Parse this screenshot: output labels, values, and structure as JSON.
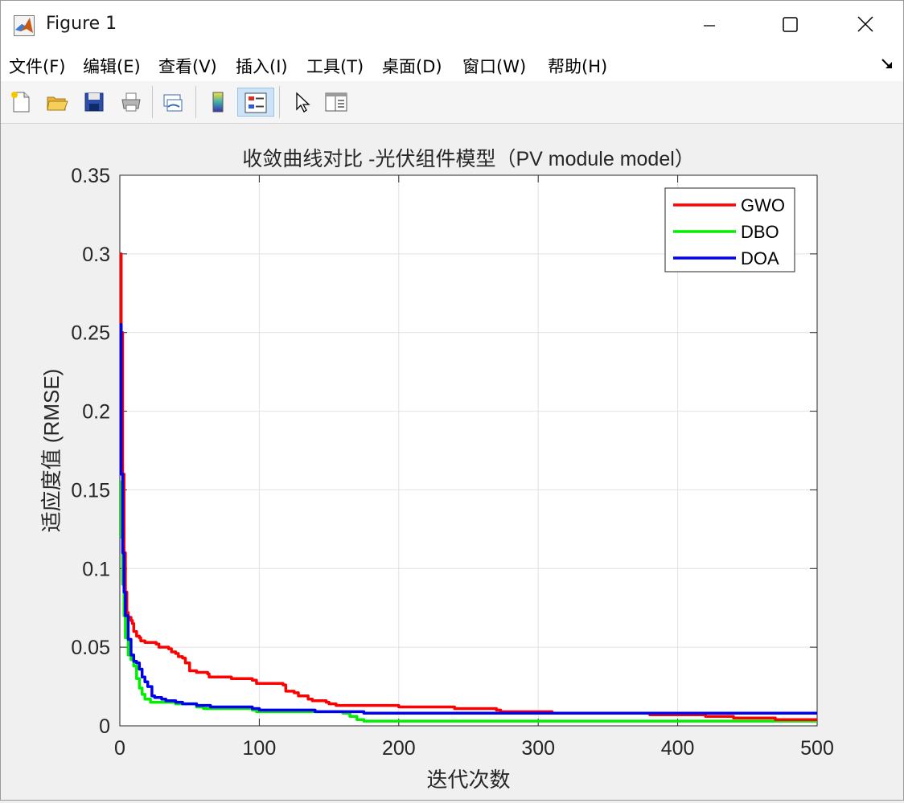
{
  "window": {
    "title": "Figure 1"
  },
  "menu": [
    {
      "label": "文件(F)"
    },
    {
      "label": "编辑(E)"
    },
    {
      "label": "查看(V)"
    },
    {
      "label": "插入(I)"
    },
    {
      "label": "工具(T)"
    },
    {
      "label": "桌面(D)"
    },
    {
      "label": "窗口(W)"
    },
    {
      "label": "帮助(H)"
    }
  ],
  "toolbar": [
    {
      "icon": "new-figure-icon"
    },
    {
      "icon": "open-file-icon"
    },
    {
      "icon": "save-icon"
    },
    {
      "icon": "print-icon"
    },
    {
      "icon": "link-plot-icon"
    },
    {
      "icon": "colorbar-icon"
    },
    {
      "icon": "legend-icon",
      "active": true
    },
    {
      "icon": "edit-plot-pointer-icon"
    },
    {
      "icon": "property-inspector-icon"
    }
  ],
  "chart_data": {
    "type": "line",
    "title": "收敛曲线对比 -光伏组件模型（PV module model）",
    "xlabel": "迭代次数",
    "ylabel": "适应度值 (RMSE)",
    "xlim": [
      0,
      500
    ],
    "ylim": [
      0,
      0.35
    ],
    "xticks": [
      0,
      100,
      200,
      300,
      400,
      500
    ],
    "xtick_labels": [
      "0",
      "100",
      "200",
      "300",
      "400",
      "500"
    ],
    "yticks": [
      0,
      0.05,
      0.1,
      0.15,
      0.2,
      0.25,
      0.3,
      0.35
    ],
    "ytick_labels": [
      "0",
      "0.05",
      "0.1",
      "0.15",
      "0.2",
      "0.25",
      "0.3",
      "0.35"
    ],
    "grid": true,
    "legend_position": "top-right",
    "series": [
      {
        "name": "GWO",
        "color": "#ff0000",
        "points": [
          [
            0,
            0.3
          ],
          [
            1,
            0.25
          ],
          [
            2,
            0.16
          ],
          [
            3,
            0.11
          ],
          [
            4,
            0.085
          ],
          [
            5,
            0.072
          ],
          [
            6,
            0.069
          ],
          [
            8,
            0.067
          ],
          [
            9,
            0.065
          ],
          [
            10,
            0.06
          ],
          [
            12,
            0.057
          ],
          [
            14,
            0.056
          ],
          [
            15,
            0.054
          ],
          [
            18,
            0.053
          ],
          [
            26,
            0.052
          ],
          [
            28,
            0.05
          ],
          [
            35,
            0.049
          ],
          [
            37,
            0.047
          ],
          [
            40,
            0.046
          ],
          [
            42,
            0.044
          ],
          [
            45,
            0.043
          ],
          [
            47,
            0.04
          ],
          [
            50,
            0.035
          ],
          [
            55,
            0.034
          ],
          [
            63,
            0.033
          ],
          [
            64,
            0.031
          ],
          [
            80,
            0.03
          ],
          [
            95,
            0.029
          ],
          [
            98,
            0.027
          ],
          [
            117,
            0.026
          ],
          [
            119,
            0.022
          ],
          [
            125,
            0.021
          ],
          [
            128,
            0.019
          ],
          [
            135,
            0.017
          ],
          [
            138,
            0.016
          ],
          [
            148,
            0.015
          ],
          [
            150,
            0.014
          ],
          [
            155,
            0.013
          ],
          [
            200,
            0.012
          ],
          [
            240,
            0.011
          ],
          [
            270,
            0.01
          ],
          [
            273,
            0.009
          ],
          [
            310,
            0.008
          ],
          [
            380,
            0.007
          ],
          [
            420,
            0.006
          ],
          [
            440,
            0.005
          ],
          [
            455,
            0.005
          ],
          [
            460,
            0.005
          ],
          [
            470,
            0.004
          ],
          [
            500,
            0.004
          ]
        ]
      },
      {
        "name": "DBO",
        "color": "#00ee00",
        "points": [
          [
            0,
            0.155
          ],
          [
            1,
            0.12
          ],
          [
            2,
            0.09
          ],
          [
            3,
            0.07
          ],
          [
            4,
            0.056
          ],
          [
            6,
            0.045
          ],
          [
            8,
            0.042
          ],
          [
            10,
            0.038
          ],
          [
            12,
            0.03
          ],
          [
            14,
            0.024
          ],
          [
            16,
            0.02
          ],
          [
            18,
            0.017
          ],
          [
            22,
            0.015
          ],
          [
            30,
            0.015
          ],
          [
            40,
            0.014
          ],
          [
            55,
            0.012
          ],
          [
            60,
            0.011
          ],
          [
            95,
            0.01
          ],
          [
            98,
            0.009
          ],
          [
            120,
            0.009
          ],
          [
            160,
            0.008
          ],
          [
            165,
            0.006
          ],
          [
            170,
            0.004
          ],
          [
            175,
            0.003
          ],
          [
            185,
            0.003
          ],
          [
            300,
            0.003
          ],
          [
            500,
            0.003
          ]
        ]
      },
      {
        "name": "DOA",
        "color": "#0000ee",
        "points": [
          [
            0,
            0.255
          ],
          [
            1,
            0.16
          ],
          [
            2,
            0.11
          ],
          [
            3,
            0.085
          ],
          [
            4,
            0.07
          ],
          [
            6,
            0.055
          ],
          [
            8,
            0.045
          ],
          [
            10,
            0.041
          ],
          [
            12,
            0.04
          ],
          [
            14,
            0.036
          ],
          [
            16,
            0.031
          ],
          [
            18,
            0.028
          ],
          [
            20,
            0.025
          ],
          [
            23,
            0.019
          ],
          [
            25,
            0.018
          ],
          [
            30,
            0.017
          ],
          [
            33,
            0.016
          ],
          [
            40,
            0.015
          ],
          [
            45,
            0.014
          ],
          [
            55,
            0.013
          ],
          [
            60,
            0.013
          ],
          [
            65,
            0.012
          ],
          [
            92,
            0.012
          ],
          [
            95,
            0.011
          ],
          [
            100,
            0.01
          ],
          [
            130,
            0.01
          ],
          [
            140,
            0.009
          ],
          [
            150,
            0.009
          ],
          [
            175,
            0.008
          ],
          [
            300,
            0.008
          ],
          [
            500,
            0.008
          ]
        ]
      }
    ]
  }
}
